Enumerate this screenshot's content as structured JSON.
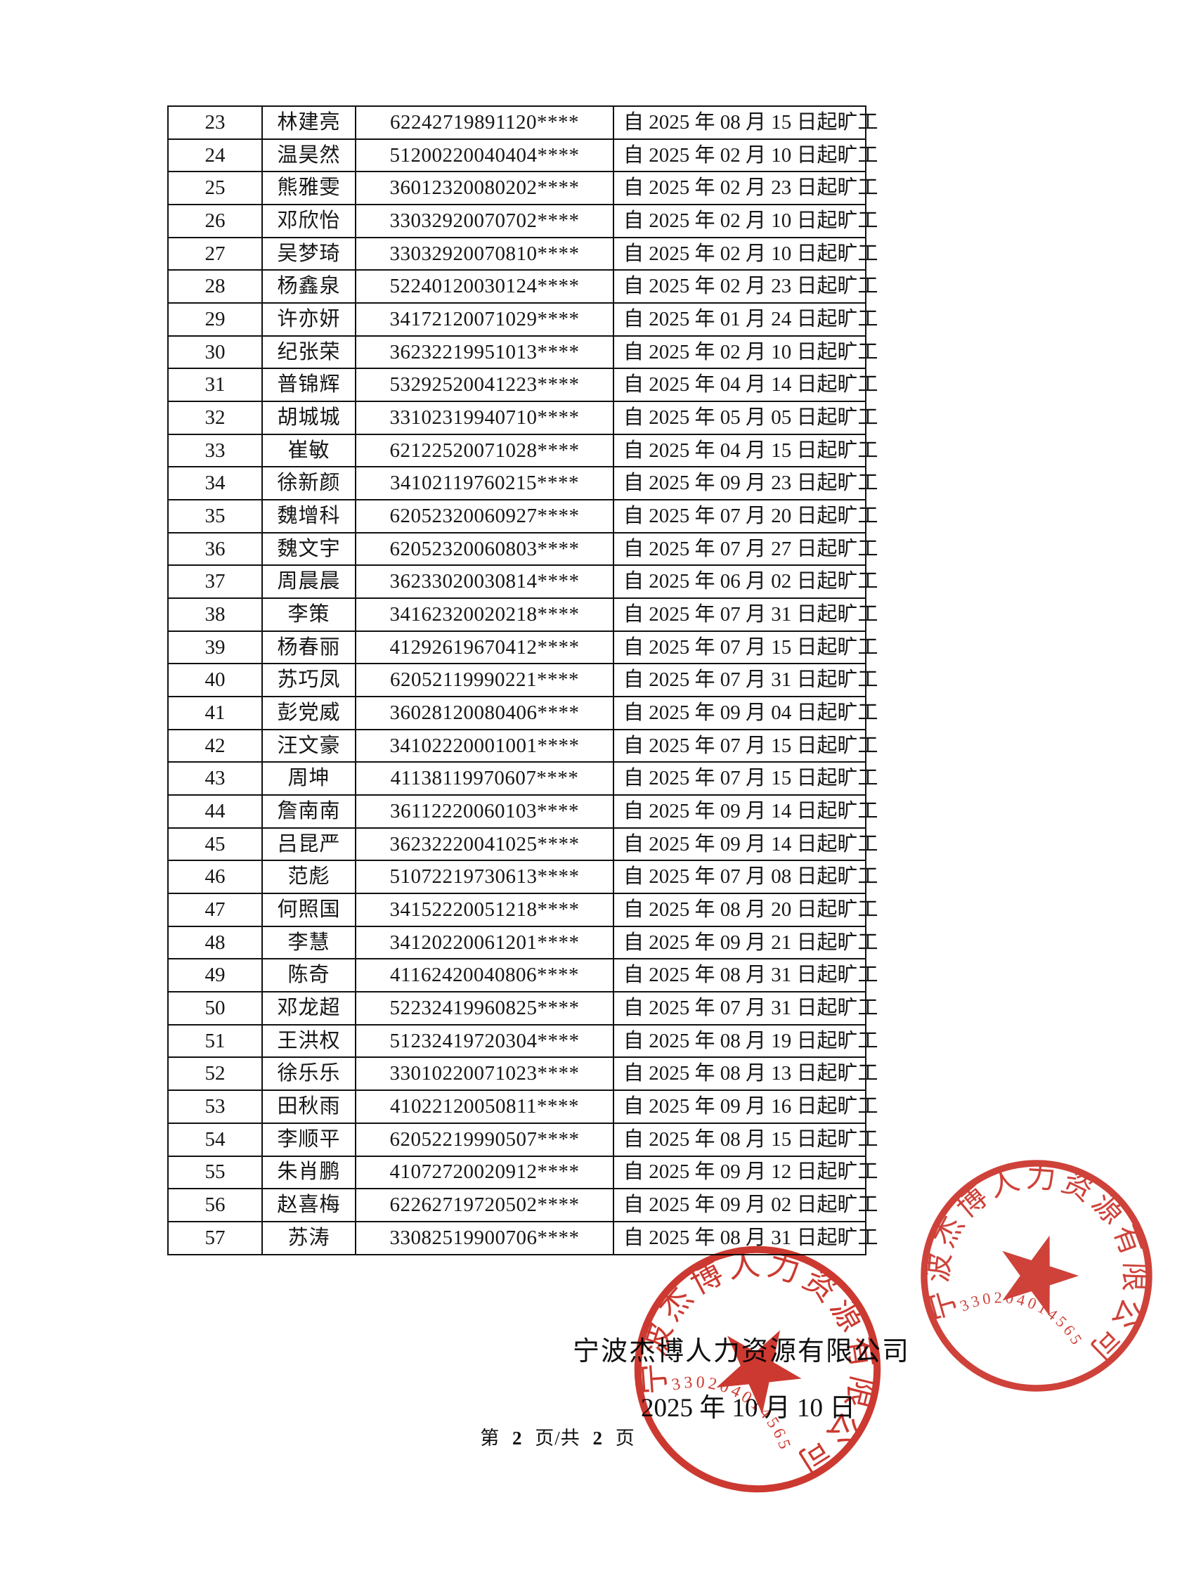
{
  "table": {
    "rows": [
      {
        "no": "23",
        "name": "林建亮",
        "id_number": "62242719891120****",
        "note": "自 2025 年 08 月 15 日起旷工"
      },
      {
        "no": "24",
        "name": "温昊然",
        "id_number": "51200220040404****",
        "note": "自 2025 年 02 月 10 日起旷工"
      },
      {
        "no": "25",
        "name": "熊雅雯",
        "id_number": "36012320080202****",
        "note": "自 2025 年 02 月 23 日起旷工"
      },
      {
        "no": "26",
        "name": "邓欣怡",
        "id_number": "33032920070702****",
        "note": "自 2025 年 02 月 10 日起旷工"
      },
      {
        "no": "27",
        "name": "吴梦琦",
        "id_number": "33032920070810****",
        "note": "自 2025 年 02 月 10 日起旷工"
      },
      {
        "no": "28",
        "name": "杨鑫泉",
        "id_number": "52240120030124****",
        "note": "自 2025 年 02 月 23 日起旷工"
      },
      {
        "no": "29",
        "name": "许亦妍",
        "id_number": "34172120071029****",
        "note": "自 2025 年 01 月 24 日起旷工"
      },
      {
        "no": "30",
        "name": "纪张荣",
        "id_number": "36232219951013****",
        "note": "自 2025 年 02 月 10 日起旷工"
      },
      {
        "no": "31",
        "name": "普锦辉",
        "id_number": "53292520041223****",
        "note": "自 2025 年 04 月 14 日起旷工"
      },
      {
        "no": "32",
        "name": "胡城城",
        "id_number": "33102319940710****",
        "note": "自 2025 年 05 月 05 日起旷工"
      },
      {
        "no": "33",
        "name": "崔敏",
        "id_number": "62122520071028****",
        "note": "自 2025 年 04 月 15 日起旷工"
      },
      {
        "no": "34",
        "name": "徐新颜",
        "id_number": "34102119760215****",
        "note": "自 2025 年 09 月 23 日起旷工"
      },
      {
        "no": "35",
        "name": "魏增科",
        "id_number": "62052320060927****",
        "note": "自 2025 年 07 月 20 日起旷工"
      },
      {
        "no": "36",
        "name": "魏文宇",
        "id_number": "62052320060803****",
        "note": "自 2025 年 07 月 27 日起旷工"
      },
      {
        "no": "37",
        "name": "周晨晨",
        "id_number": "36233020030814****",
        "note": "自 2025 年 06 月 02 日起旷工"
      },
      {
        "no": "38",
        "name": "李策",
        "id_number": "34162320020218****",
        "note": "自 2025 年 07 月 31 日起旷工"
      },
      {
        "no": "39",
        "name": "杨春丽",
        "id_number": "41292619670412****",
        "note": "自 2025 年 07 月 15 日起旷工"
      },
      {
        "no": "40",
        "name": "苏巧凤",
        "id_number": "62052119990221****",
        "note": "自 2025 年 07 月 31 日起旷工"
      },
      {
        "no": "41",
        "name": "彭党威",
        "id_number": "36028120080406****",
        "note": "自 2025 年 09 月 04 日起旷工"
      },
      {
        "no": "42",
        "name": "汪文豪",
        "id_number": "34102220001001****",
        "note": "自 2025 年 07 月 15 日起旷工"
      },
      {
        "no": "43",
        "name": "周坤",
        "id_number": "41138119970607****",
        "note": "自 2025 年 07 月 15 日起旷工"
      },
      {
        "no": "44",
        "name": "詹南南",
        "id_number": "36112220060103****",
        "note": "自 2025 年 09 月 14 日起旷工"
      },
      {
        "no": "45",
        "name": "吕昆严",
        "id_number": "36232220041025****",
        "note": "自 2025 年 09 月 14 日起旷工"
      },
      {
        "no": "46",
        "name": "范彪",
        "id_number": "51072219730613****",
        "note": "自 2025 年 07 月 08 日起旷工"
      },
      {
        "no": "47",
        "name": "何照国",
        "id_number": "34152220051218****",
        "note": "自 2025 年 08 月 20 日起旷工"
      },
      {
        "no": "48",
        "name": "李慧",
        "id_number": "34120220061201****",
        "note": "自 2025 年 09 月 21 日起旷工"
      },
      {
        "no": "49",
        "name": "陈奇",
        "id_number": "41162420040806****",
        "note": "自 2025 年 08 月 31 日起旷工"
      },
      {
        "no": "50",
        "name": "邓龙超",
        "id_number": "52232419960825****",
        "note": "自 2025 年 07 月 31 日起旷工"
      },
      {
        "no": "51",
        "name": "王洪权",
        "id_number": "51232419720304****",
        "note": "自 2025 年 08 月 19 日起旷工"
      },
      {
        "no": "52",
        "name": "徐乐乐",
        "id_number": "33010220071023****",
        "note": "自 2025 年 08 月 13 日起旷工"
      },
      {
        "no": "53",
        "name": "田秋雨",
        "id_number": "41022120050811****",
        "note": "自 2025 年 09 月 16 日起旷工"
      },
      {
        "no": "54",
        "name": "李顺平",
        "id_number": "62052219990507****",
        "note": "自 2025 年 08 月 15 日起旷工"
      },
      {
        "no": "55",
        "name": "朱肖鹏",
        "id_number": "41072720020912****",
        "note": "自 2025 年 09 月 12 日起旷工"
      },
      {
        "no": "56",
        "name": "赵喜梅",
        "id_number": "62262719720502****",
        "note": "自 2025 年 09 月 02 日起旷工"
      },
      {
        "no": "57",
        "name": "苏涛",
        "id_number": "33082519900706****",
        "note": "自 2025 年 08 月 31 日起旷工"
      }
    ]
  },
  "signature": {
    "company": "宁波杰博人力资源有限公司",
    "date": "2025 年 10 月 10 日"
  },
  "footer": {
    "label_page": "第",
    "page_number": "2",
    "label_of": "页/共",
    "total_pages": "2",
    "label_pages": "页"
  },
  "seal": {
    "arc_text": "宁波杰博人力资源有限公司",
    "serial": "330204014565",
    "color": "#c8281e"
  }
}
